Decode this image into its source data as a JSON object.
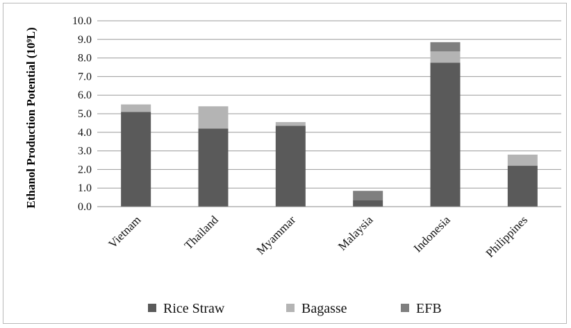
{
  "chart_data": {
    "type": "bar",
    "stacked": true,
    "title": "",
    "xlabel": "",
    "ylabel": "Ethanol Production Potential (10⁹L)",
    "ylim": [
      0,
      10
    ],
    "ytick_labels": [
      "0.0",
      "1.0",
      "2.0",
      "3.0",
      "4.0",
      "5.0",
      "6.0",
      "7.0",
      "8.0",
      "9.0",
      "10.0"
    ],
    "grid": true,
    "legend_position": "bottom",
    "categories": [
      "Vietnam",
      "Thailand",
      "Myammar",
      "Malaysia",
      "Indonesia",
      "Philippines"
    ],
    "series": [
      {
        "name": "Rice Straw",
        "color": "#5a5a5a",
        "values": [
          5.1,
          4.2,
          4.35,
          0.35,
          7.75,
          2.2
        ]
      },
      {
        "name": "Bagasse",
        "color": "#b4b4b4",
        "values": [
          0.4,
          1.2,
          0.2,
          0.0,
          0.6,
          0.6
        ]
      },
      {
        "name": "EFB",
        "color": "#7f7f7f",
        "values": [
          0.0,
          0.0,
          0.0,
          0.5,
          0.5,
          0.0
        ]
      }
    ]
  }
}
